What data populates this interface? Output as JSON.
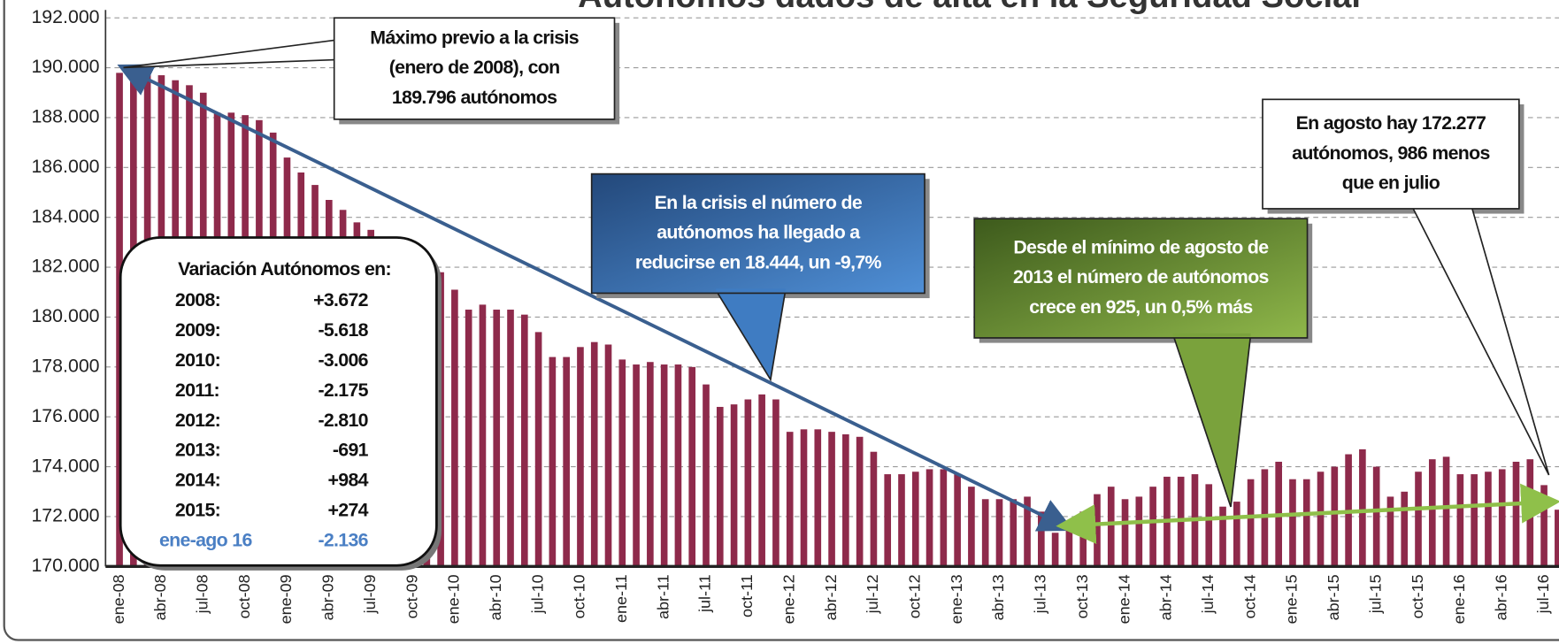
{
  "chart_data": {
    "type": "bar",
    "title": "Autónomos dados de alta en la Seguridad Social",
    "categories": [
      "ene-08",
      null,
      null,
      "abr-08",
      null,
      null,
      "jul-08",
      null,
      null,
      "oct-08",
      null,
      null,
      "ene-09",
      null,
      null,
      "abr-09",
      null,
      null,
      "jul-09",
      null,
      null,
      "oct-09",
      null,
      null,
      "ene-10",
      null,
      null,
      "abr-10",
      null,
      null,
      "jul-10",
      null,
      null,
      "oct-10",
      null,
      null,
      "ene-11",
      null,
      null,
      "abr-11",
      null,
      null,
      "jul-11",
      null,
      null,
      "oct-11",
      null,
      null,
      "ene-12",
      null,
      null,
      "abr-12",
      null,
      null,
      "jul-12",
      null,
      null,
      "oct-12",
      null,
      null,
      "ene-13",
      null,
      null,
      "abr-13",
      null,
      null,
      "jul-13",
      null,
      null,
      "oct-13",
      null,
      null,
      "ene-14",
      null,
      null,
      "abr-14",
      null,
      null,
      "jul-14",
      null,
      null,
      "oct-14",
      null,
      null,
      "ene-15",
      null,
      null,
      "abr-15",
      null,
      null,
      "jul-15",
      null,
      null,
      "oct-15",
      null,
      null,
      "ene-16",
      null,
      null,
      "abr-16",
      null,
      null,
      "jul-16",
      null
    ],
    "values": [
      189796,
      189700,
      189800,
      189700,
      189500,
      189300,
      189000,
      188200,
      188200,
      188100,
      187900,
      187400,
      186400,
      185800,
      185300,
      184700,
      184300,
      183800,
      183500,
      183200,
      182900,
      182500,
      182100,
      181800,
      181100,
      180300,
      180500,
      180300,
      180300,
      180100,
      179400,
      178400,
      178400,
      178800,
      179000,
      178900,
      178300,
      178100,
      178200,
      178100,
      178100,
      178000,
      177300,
      176400,
      176500,
      176700,
      176900,
      176700,
      175400,
      175500,
      175500,
      175400,
      175300,
      175200,
      174600,
      173700,
      173700,
      173800,
      173900,
      173900,
      173700,
      173200,
      172700,
      172700,
      172700,
      172800,
      172200,
      171352,
      171800,
      172200,
      172900,
      173200,
      172700,
      172800,
      173200,
      173600,
      173600,
      173700,
      173300,
      172400,
      172600,
      173500,
      173900,
      174200,
      173500,
      173500,
      173800,
      174000,
      174500,
      174700,
      174000,
      172800,
      173000,
      173800,
      174300,
      174400,
      173700,
      173700,
      173800,
      173900,
      174200,
      174300,
      173263,
      172277
    ],
    "color": "#8e2a4b",
    "ylim": [
      170000,
      192000
    ],
    "yticks": [
      {
        "value": 170000,
        "label": "170.000"
      },
      {
        "value": 172000,
        "label": "172.000"
      },
      {
        "value": 174000,
        "label": "174.000"
      },
      {
        "value": 176000,
        "label": "176.000"
      },
      {
        "value": 178000,
        "label": "178.000"
      },
      {
        "value": 180000,
        "label": "180.000"
      },
      {
        "value": 182000,
        "label": "182.000"
      },
      {
        "value": 184000,
        "label": "184.000"
      },
      {
        "value": 186000,
        "label": "186.000"
      },
      {
        "value": 188000,
        "label": "188.000"
      },
      {
        "value": 190000,
        "label": "190.000"
      },
      {
        "value": 192000,
        "label": "192.000"
      }
    ],
    "grid": true,
    "annotations": [
      {
        "lines": [
          "Máximo previo a la crisis",
          "(enero de 2008), con",
          "189.796  autónomos"
        ]
      },
      {
        "lines": [
          "En la crisis el número de",
          "autónomos ha llegado a",
          "reducirse en 18.444,  un -9,7%"
        ]
      },
      {
        "lines": [
          "Desde el mínimo de agosto de",
          "2013  el número de autónomos",
          "crece en 925,  un 0,5% más"
        ]
      },
      {
        "lines": [
          "En agosto hay 172.277",
          "autónomos, 986 menos",
          "que en julio"
        ]
      }
    ],
    "variation": {
      "title": "Variación Autónomos en:",
      "rows": [
        {
          "label": "2008:",
          "value": "+3.672"
        },
        {
          "label": "2009:",
          "value": "-5.618"
        },
        {
          "label": "2010:",
          "value": "-3.006"
        },
        {
          "label": "2011:",
          "value": "-2.175"
        },
        {
          "label": "2012:",
          "value": "-2.810"
        },
        {
          "label": "2013:",
          "value": "-691"
        },
        {
          "label": "2014:",
          "value": "+984"
        },
        {
          "label": "2015:",
          "value": "+274"
        },
        {
          "label": "ene-ago 16",
          "value": "-2.136"
        }
      ]
    }
  }
}
